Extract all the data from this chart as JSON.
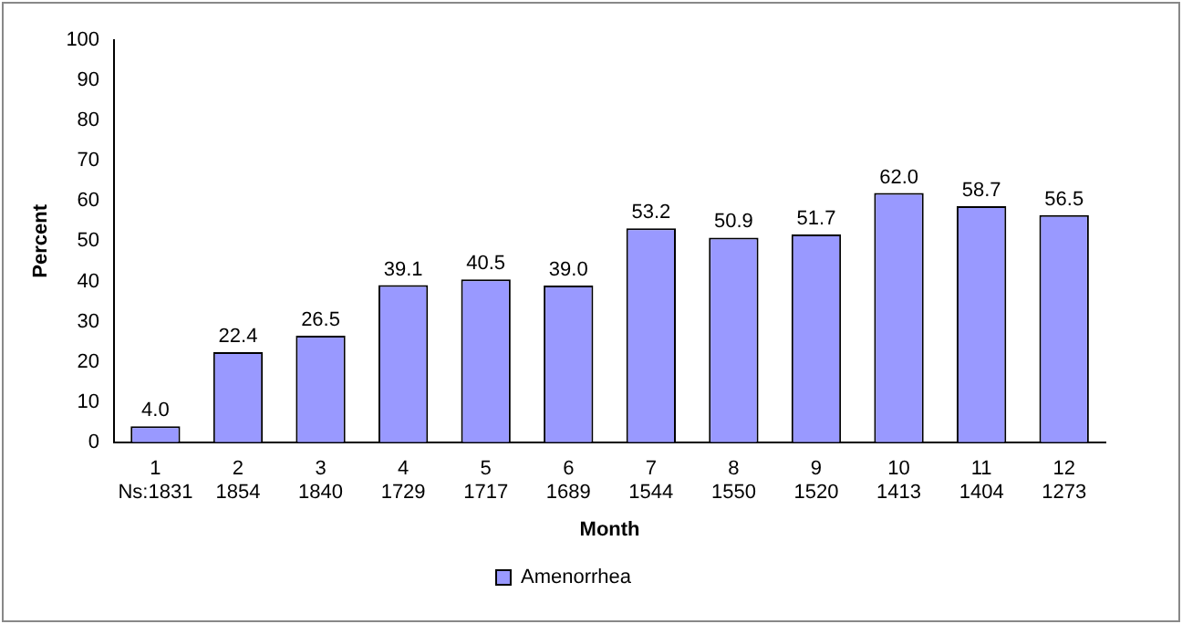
{
  "chart_data": {
    "type": "bar",
    "xlabel": "Month",
    "ylabel": "Percent",
    "categories": [
      "1\nNs:1831",
      "2\n1854",
      "3\n1840",
      "4\n1729",
      "5\n1717",
      "6\n1689",
      "7\n1544",
      "8\n1550",
      "9\n1520",
      "10\n1413",
      "11\n1404",
      "12\n1273"
    ],
    "series": [
      {
        "name": "Amenorrhea",
        "color": "#9999ff",
        "values": [
          4.0,
          22.4,
          26.5,
          39.1,
          40.5,
          39.0,
          53.2,
          50.9,
          51.7,
          62.0,
          58.7,
          56.5
        ],
        "value_labels": [
          "4.0",
          "22.4",
          "26.5",
          "39.1",
          "40.5",
          "39.0",
          "53.2",
          "50.9",
          "51.7",
          "62.0",
          "58.7",
          "56.5"
        ]
      }
    ],
    "ylim": [
      0,
      100
    ],
    "yticks": [
      0,
      10,
      20,
      30,
      40,
      50,
      60,
      70,
      80,
      90,
      100
    ],
    "grid": false,
    "legend": "bottom"
  }
}
